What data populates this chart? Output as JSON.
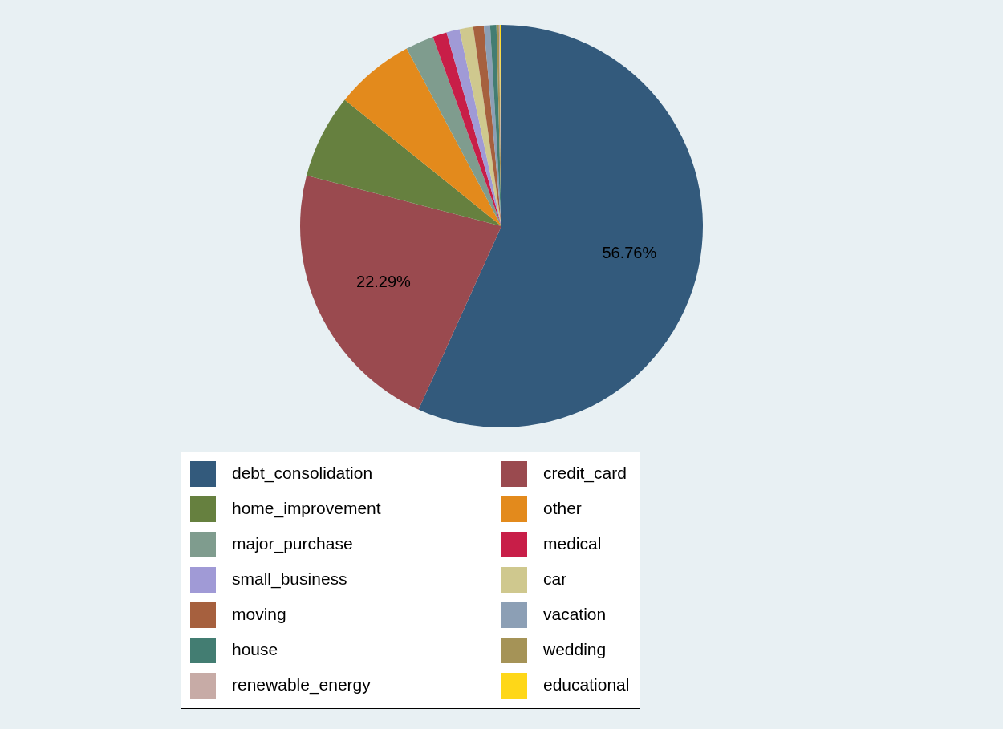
{
  "chart_data": {
    "type": "pie",
    "categories": [
      "debt_consolidation",
      "credit_card",
      "home_improvement",
      "other",
      "major_purchase",
      "medical",
      "small_business",
      "car",
      "moving",
      "vacation",
      "house",
      "wedding",
      "renewable_energy",
      "educational"
    ],
    "values": [
      56.76,
      22.29,
      6.75,
      6.4,
      2.27,
      1.13,
      1.05,
      1.1,
      0.85,
      0.5,
      0.5,
      0.2,
      0.07,
      0.13
    ],
    "colors": [
      "#335a7c",
      "#9a4a4f",
      "#66803f",
      "#e38a1c",
      "#7f9c8e",
      "#c81e48",
      "#a09ad6",
      "#cfc88e",
      "#a6603e",
      "#8c9fb5",
      "#437d72",
      "#a59357",
      "#c7aba6",
      "#fed718"
    ],
    "value_labels": [
      "56.76%",
      "22.29%",
      null,
      null,
      null,
      null,
      null,
      null,
      null,
      null,
      null,
      null,
      null,
      null
    ],
    "legend": "bottom"
  }
}
